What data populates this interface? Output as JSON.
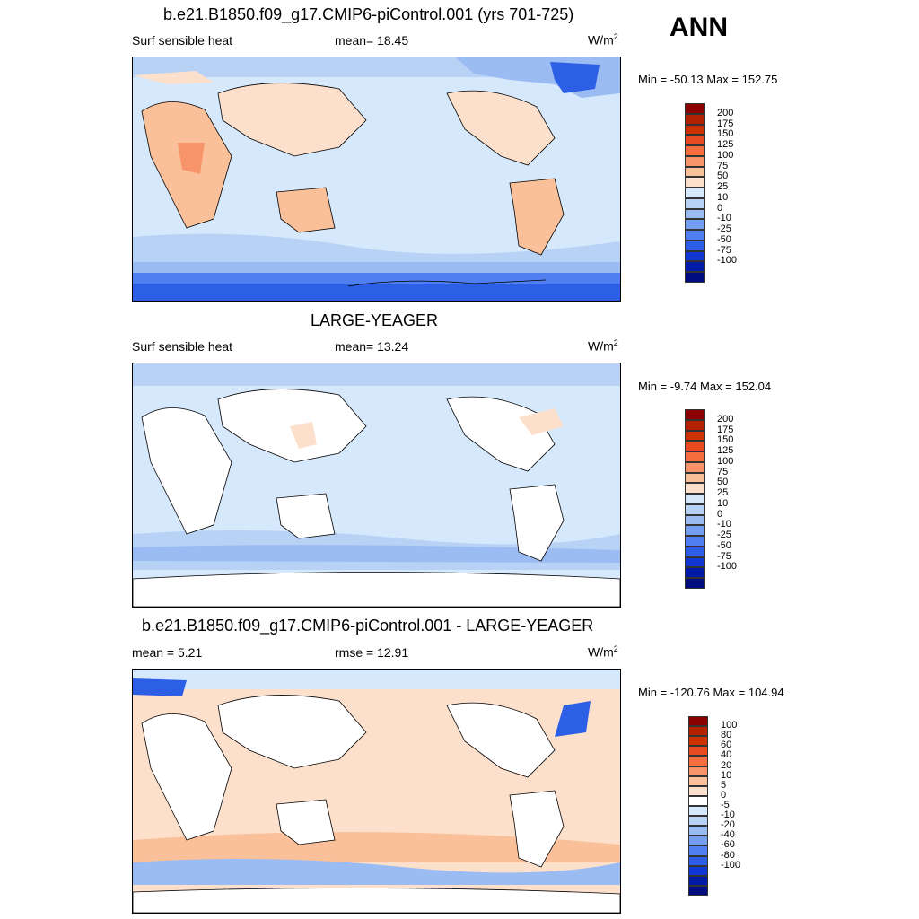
{
  "season": "ANN",
  "panels": [
    {
      "title": "b.e21.B1850.f09_g17.CMIP6-piControl.001 (yrs 701-725)",
      "left_label": "Surf sensible heat",
      "center_label": "mean=  18.45",
      "units": "W/m",
      "units_sup": "2",
      "minmax": "Min = -50.13 Max = 152.75",
      "colorbar": {
        "colors": [
          "#8b0000",
          "#b22200",
          "#cc3300",
          "#e8491e",
          "#f46f3d",
          "#f7946a",
          "#fac09a",
          "#fde0cc",
          "#d6e8fb",
          "#b8d2f6",
          "#9bbcf2",
          "#749ff0",
          "#4f7ff0",
          "#2c5ee6",
          "#1038d0",
          "#001aa8",
          "#000c80"
        ],
        "ticks": [
          "200",
          "175",
          "150",
          "125",
          "100",
          "75",
          "50",
          "25",
          "10",
          "0",
          "-10",
          "-25",
          "-50",
          "-75",
          "-100"
        ]
      }
    },
    {
      "title": "LARGE-YEAGER",
      "left_label": "Surf sensible heat",
      "center_label": "mean=  13.24",
      "units": "W/m",
      "units_sup": "2",
      "minmax": "Min =  -9.74 Max = 152.04",
      "colorbar": {
        "colors": [
          "#8b0000",
          "#b22200",
          "#cc3300",
          "#e8491e",
          "#f46f3d",
          "#f7946a",
          "#fac09a",
          "#fde0cc",
          "#d6e8fb",
          "#b8d2f6",
          "#9bbcf2",
          "#749ff0",
          "#4f7ff0",
          "#2c5ee6",
          "#1038d0",
          "#001aa8",
          "#000c80"
        ],
        "ticks": [
          "200",
          "175",
          "150",
          "125",
          "100",
          "75",
          "50",
          "25",
          "10",
          "0",
          "-10",
          "-25",
          "-50",
          "-75",
          "-100"
        ]
      }
    },
    {
      "title": "b.e21.B1850.f09_g17.CMIP6-piControl.001 - LARGE-YEAGER",
      "left_label": "mean =   5.21",
      "center_label": "rmse =  12.91",
      "units": "W/m",
      "units_sup": "2",
      "minmax": "Min = -120.76 Max = 104.94",
      "colorbar": {
        "colors": [
          "#8b0000",
          "#b22200",
          "#cc3300",
          "#e8491e",
          "#f46f3d",
          "#f7946a",
          "#fac09a",
          "#fde0cc",
          "#ffffff",
          "#d6e8fb",
          "#b8d2f6",
          "#9bbcf2",
          "#749ff0",
          "#4f7ff0",
          "#2c5ee6",
          "#1038d0",
          "#001aa8",
          "#000c80"
        ],
        "ticks": [
          "100",
          "80",
          "60",
          "40",
          "20",
          "10",
          "5",
          "0",
          "-5",
          "-10",
          "-20",
          "-40",
          "-60",
          "-80",
          "-100"
        ]
      }
    }
  ]
}
